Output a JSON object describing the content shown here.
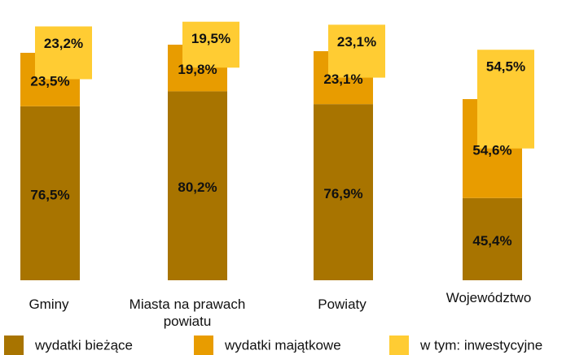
{
  "chart_data": {
    "type": "bar",
    "categories": [
      "Gminy",
      "Miasta na prawach powiatu",
      "Powiaty",
      "Województwo"
    ],
    "series": [
      {
        "name": "wydatki bieżące",
        "color": "#A87400",
        "values": [
          76.5,
          80.2,
          76.9,
          45.4
        ],
        "value_labels": [
          "76,5%",
          "80,2%",
          "76,9%",
          "45,4%"
        ]
      },
      {
        "name": "wydatki majątkowe",
        "color": "#E89C00",
        "values": [
          23.5,
          19.8,
          23.1,
          54.6
        ],
        "value_labels": [
          "23,5%",
          "19,8%",
          "23,1%",
          "54,6%"
        ]
      },
      {
        "name": "w tym: inwestycyjne",
        "color": "#FFCC33",
        "values": [
          23.2,
          19.5,
          23.1,
          54.5
        ],
        "value_labels": [
          "23,2%",
          "19,5%",
          "23,1%",
          "54,5%"
        ]
      }
    ]
  }
}
